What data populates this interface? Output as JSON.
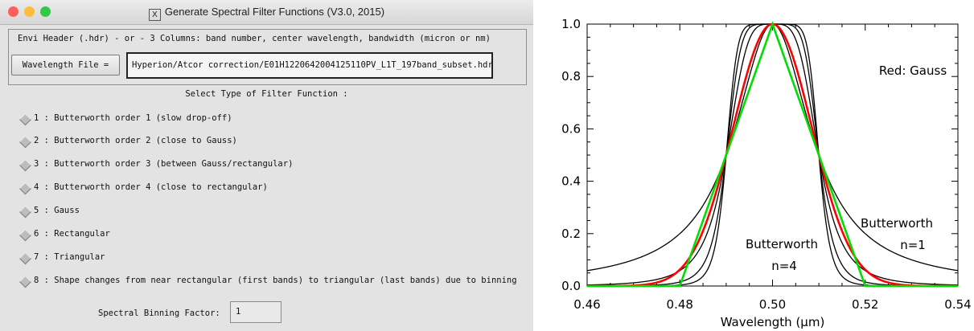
{
  "window": {
    "title": "Generate Spectral Filter Functions (V3.0, 2015)",
    "x_icon_text": "X",
    "header_info": "Envi Header (.hdr) - or - 3 Columns: band number, center wavelength, bandwidth (micron or nm)",
    "wavelength_button_label": "Wavelength File =",
    "wavelength_file_value": "Hyperion/Atcor correction/E01H1220642004125110PV_L1T_197band_subset.hdr",
    "select_heading": "Select Type of Filter Function :",
    "options": [
      {
        "label": "1 : Butterworth order 1 (slow drop-off)"
      },
      {
        "label": "2 : Butterworth order 2 (close to Gauss)"
      },
      {
        "label": "3 : Butterworth order 3 (between Gauss/rectangular)"
      },
      {
        "label": "4 : Butterworth order 4 (close to rectangular)"
      },
      {
        "label": "5 : Gauss"
      },
      {
        "label": "6 : Rectangular"
      },
      {
        "label": "7 : Triangular"
      },
      {
        "label": "8 : Shape changes from near rectangular (first bands) to triangular (last bands) due to binning"
      }
    ],
    "binning_label": "Spectral Binning Factor:",
    "binning_value": "1",
    "traffic_lights": {
      "close": "#fc605c",
      "minimize": "#fdbc40",
      "zoom": "#34c84a"
    }
  },
  "chart_data": {
    "type": "line",
    "xlabel": "Wavelength (μm)",
    "xlim": [
      0.46,
      0.54
    ],
    "ylim": [
      0.0,
      1.0
    ],
    "x_ticks": [
      "0.46",
      "0.48",
      "0.50",
      "0.52",
      "0.54"
    ],
    "y_ticks": [
      "0.0",
      "0.2",
      "0.4",
      "0.6",
      "0.8",
      "1.0"
    ],
    "center": 0.5,
    "fwhm": 0.02,
    "annotations": [
      "Red: Gauss",
      "Butterworth",
      "n=1",
      "Butterworth",
      "n=4"
    ],
    "series": [
      {
        "kind": "butterworth",
        "order": 1,
        "color": "#000000"
      },
      {
        "kind": "butterworth",
        "order": 2,
        "color": "#000000"
      },
      {
        "kind": "butterworth",
        "order": 3,
        "color": "#000000"
      },
      {
        "kind": "butterworth",
        "order": 4,
        "color": "#000000"
      },
      {
        "kind": "gauss",
        "color": "#ff0000"
      },
      {
        "kind": "triangle",
        "color": "#00dd00"
      }
    ]
  }
}
